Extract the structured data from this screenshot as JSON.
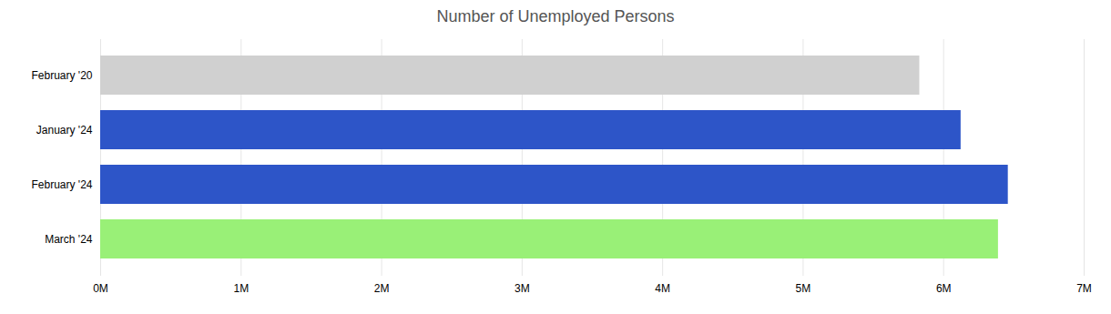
{
  "chart_data": {
    "type": "bar",
    "orientation": "horizontal",
    "title": "Number of Unemployed Persons",
    "categories": [
      "February '20",
      "January '24",
      "February '24",
      "March '24"
    ],
    "values": [
      5830000,
      6124000,
      6460000,
      6390000
    ],
    "colors": [
      "#d0d0d0",
      "#2d55c8",
      "#2d55c8",
      "#99f077"
    ],
    "xlim": [
      0,
      7000000
    ],
    "xticks": [
      {
        "value": 0,
        "label": "0M"
      },
      {
        "value": 1000000,
        "label": "1M"
      },
      {
        "value": 2000000,
        "label": "2M"
      },
      {
        "value": 3000000,
        "label": "3M"
      },
      {
        "value": 4000000,
        "label": "4M"
      },
      {
        "value": 5000000,
        "label": "5M"
      },
      {
        "value": 6000000,
        "label": "6M"
      },
      {
        "value": 7000000,
        "label": "7M"
      }
    ],
    "grid": true
  }
}
